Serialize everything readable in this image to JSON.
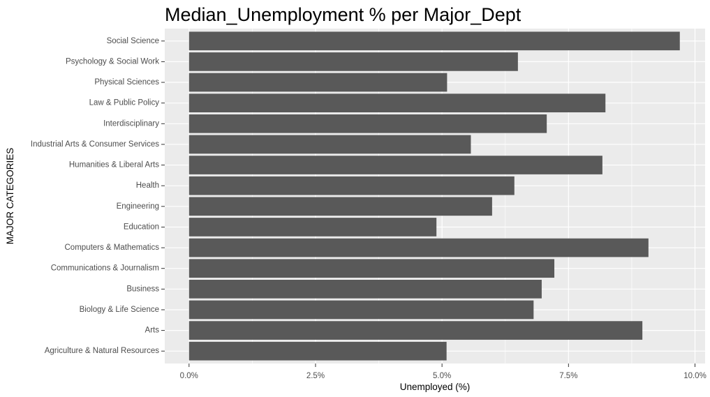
{
  "chart_data": {
    "type": "bar",
    "orientation": "horizontal",
    "title": "Median_Unemployment % per Major_Dept",
    "xlabel": "Unemployed (%)",
    "ylabel": "MAJOR CATEGORIES",
    "categories": [
      "Agriculture & Natural Resources",
      "Arts",
      "Biology & Life Science",
      "Business",
      "Communications & Journalism",
      "Computers & Mathematics",
      "Education",
      "Engineering",
      "Health",
      "Humanities & Liberal Arts",
      "Industrial Arts & Consumer Services",
      "Interdisciplinary",
      "Law & Public Policy",
      "Physical Sciences",
      "Psychology & Social Work",
      "Social Science"
    ],
    "values": [
      5.09,
      8.96,
      6.81,
      6.97,
      7.22,
      9.08,
      4.89,
      5.99,
      6.43,
      8.17,
      5.57,
      7.07,
      8.23,
      5.1,
      6.5,
      9.7
    ],
    "xlim": [
      -0.48,
      10.2
    ],
    "xticks": [
      0,
      2.5,
      5,
      7.5,
      10
    ],
    "xtick_labels": [
      "0.0%",
      "2.5%",
      "5.0%",
      "7.5%",
      "10.0%"
    ],
    "grid": true,
    "legend": "none",
    "colors": {
      "bar": "#595959",
      "panel": "#ebebeb",
      "gridline": "#ffffff",
      "tick_text": "#4d4d4d"
    }
  }
}
